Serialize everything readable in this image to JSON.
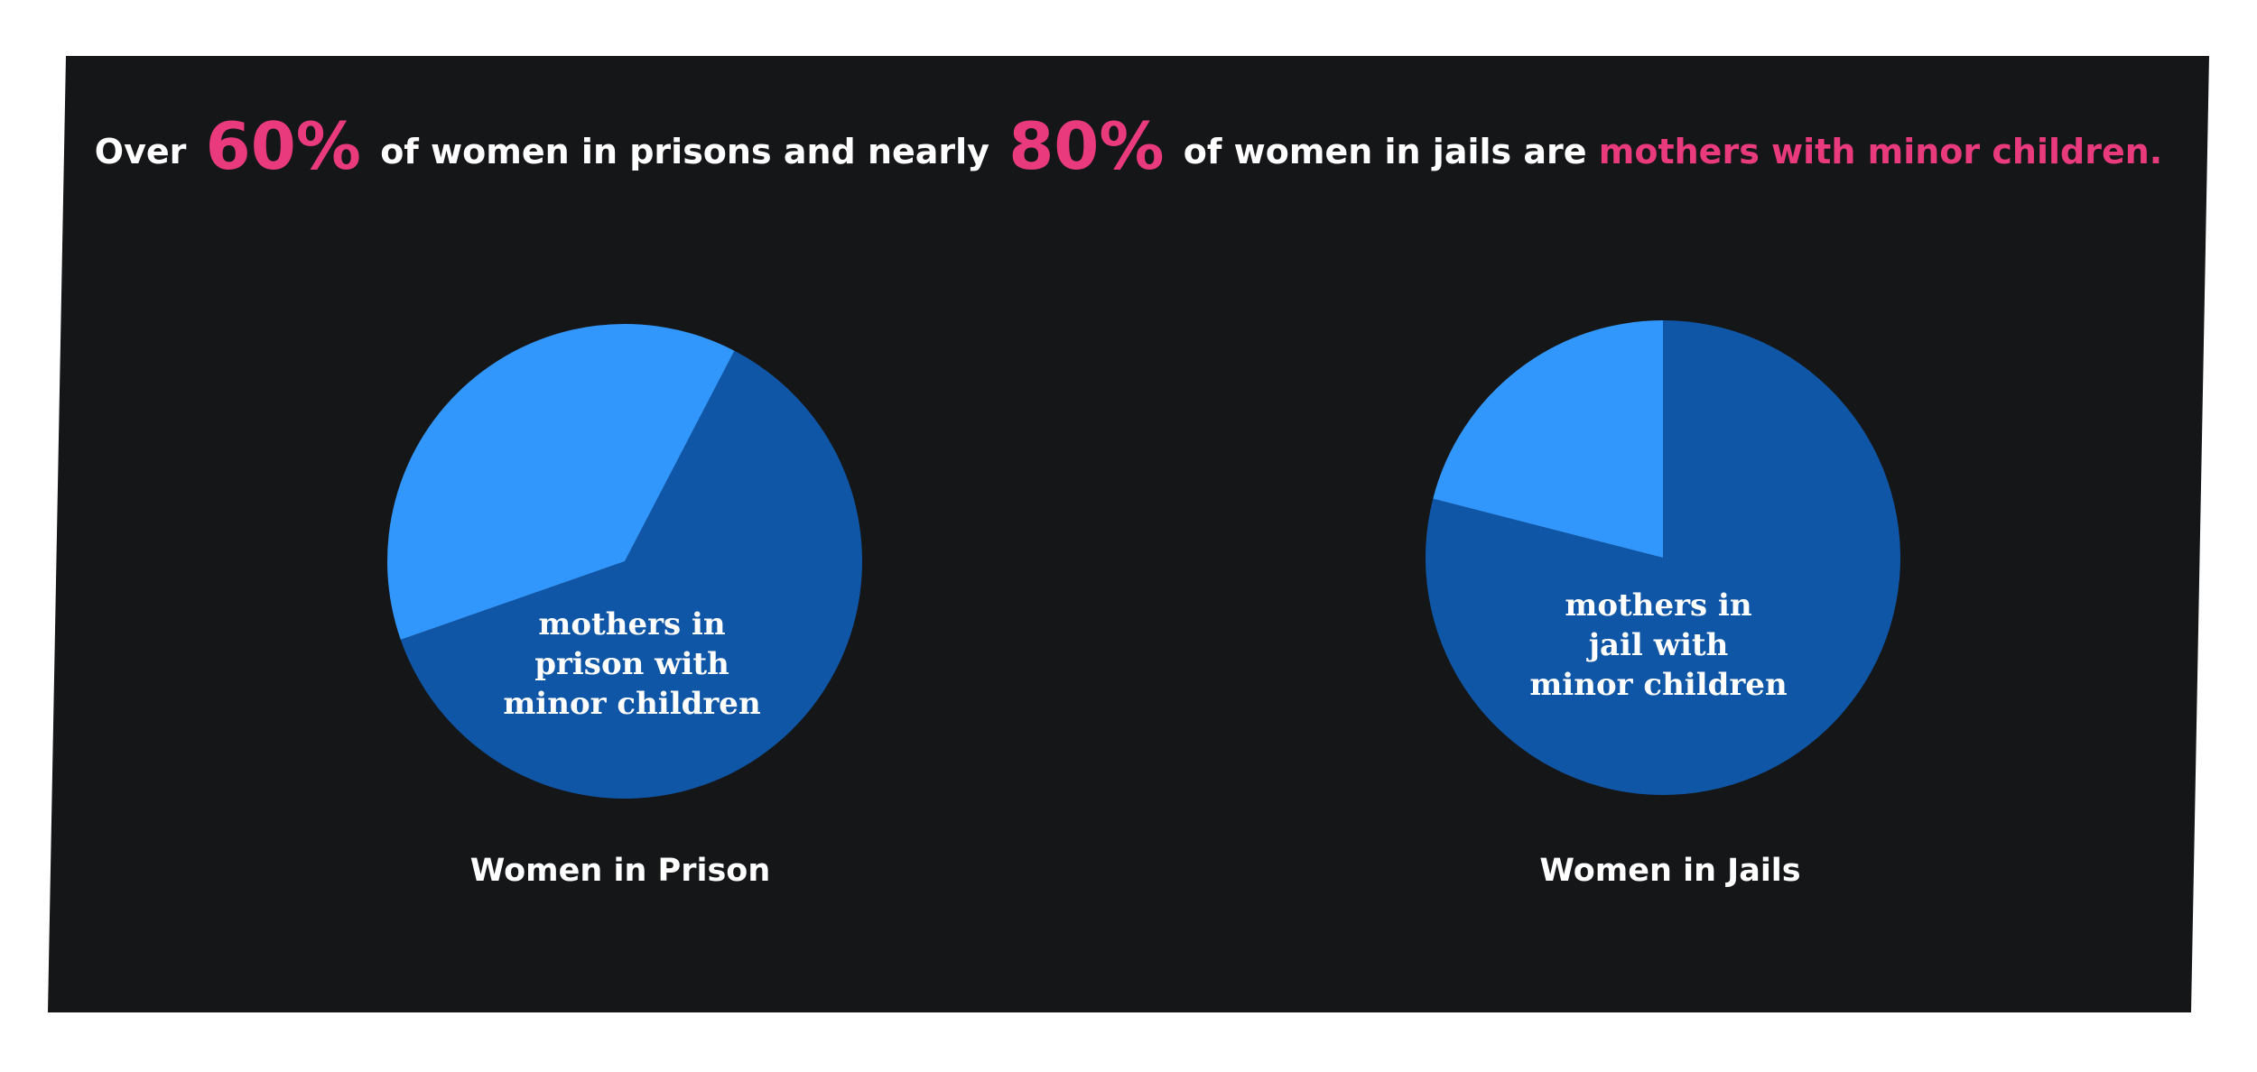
{
  "headline": {
    "part1": "Over",
    "pct_prison": "60%",
    "part2": "of women in prisons and nearly",
    "pct_jail": "80%",
    "part3": "of women in jails are",
    "accent": "mothers with minor children."
  },
  "colors": {
    "background": "#151618",
    "accent": "#e83a7c",
    "dark_blue": "#1056a6",
    "light_blue": "#3297fd"
  },
  "chart_data": [
    {
      "type": "pie",
      "title": "Women in Prison",
      "slices": [
        {
          "label_lines": [
            "mothers in",
            "prison with",
            "minor children"
          ],
          "value": 62,
          "color": "#1056a6"
        },
        {
          "label_lines": [],
          "value": 38,
          "color": "#3297fd"
        }
      ]
    },
    {
      "type": "pie",
      "title": "Women in Jails",
      "slices": [
        {
          "label_lines": [
            "mothers in",
            "jail with",
            "minor children"
          ],
          "value": 79,
          "color": "#1056a6"
        },
        {
          "label_lines": [],
          "value": 21,
          "color": "#3297fd"
        }
      ]
    }
  ]
}
